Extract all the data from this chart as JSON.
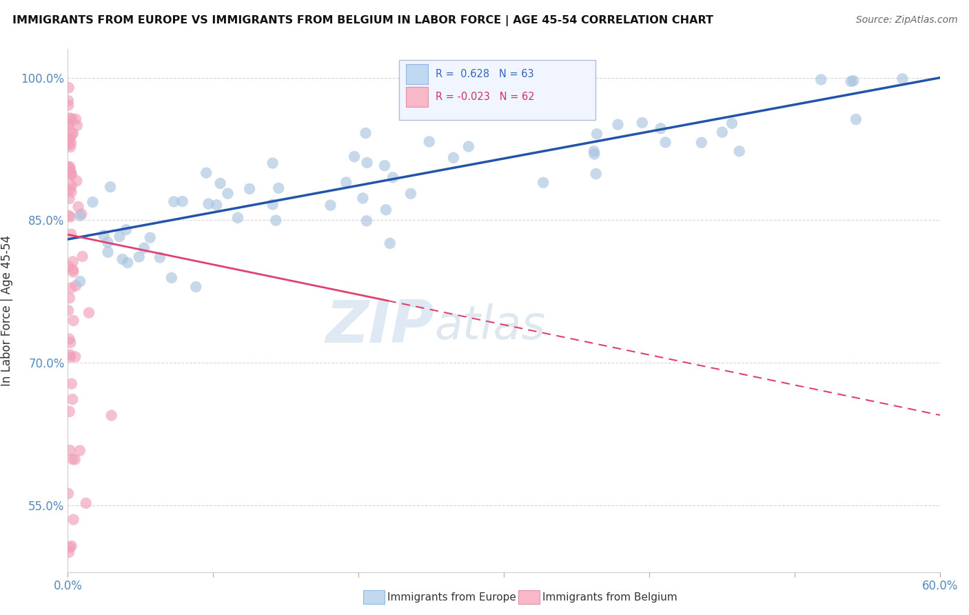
{
  "title": "IMMIGRANTS FROM EUROPE VS IMMIGRANTS FROM BELGIUM IN LABOR FORCE | AGE 45-54 CORRELATION CHART",
  "source": "Source: ZipAtlas.com",
  "ylabel": "In Labor Force | Age 45-54",
  "xlim": [
    0.0,
    0.6
  ],
  "ylim": [
    0.48,
    1.03
  ],
  "xtick_positions": [
    0.0,
    0.1,
    0.2,
    0.3,
    0.4,
    0.5,
    0.6
  ],
  "xtick_labels": [
    "0.0%",
    "",
    "",
    "",
    "",
    "",
    "60.0%"
  ],
  "ytick_positions": [
    0.55,
    0.7,
    0.85,
    1.0
  ],
  "ytick_labels": [
    "55.0%",
    "70.0%",
    "85.0%",
    "100.0%"
  ],
  "blue_R": 0.628,
  "blue_N": 63,
  "pink_R": -0.023,
  "pink_N": 62,
  "blue_dot_color": "#a8c4e0",
  "pink_dot_color": "#f0a0b8",
  "blue_line_color": "#2255aa",
  "pink_line_color": "#e04070",
  "legend_blue": "Immigrants from Europe",
  "legend_pink": "Immigrants from Belgium",
  "watermark_zip": "ZIP",
  "watermark_atlas": "atlas",
  "blue_trend_x0": 0.0,
  "blue_trend_y0": 0.83,
  "blue_trend_x1": 0.6,
  "blue_trend_y1": 1.0,
  "pink_trend_x0": 0.0,
  "pink_trend_y0": 0.835,
  "pink_trend_x1": 0.6,
  "pink_trend_y1": 0.645
}
